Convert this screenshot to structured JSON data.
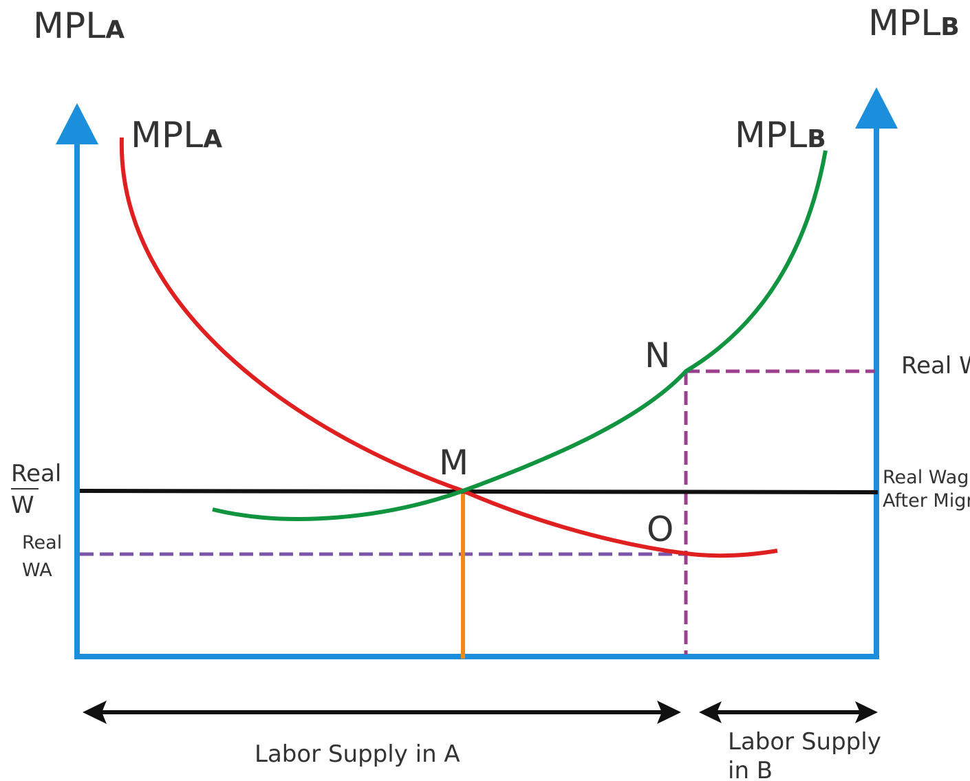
{
  "header": {
    "left_axis": {
      "main": "MPL",
      "sub": "A"
    },
    "right_axis": {
      "main": "MPL",
      "sub": "B"
    }
  },
  "curves": {
    "mpl_a": {
      "main": "MPL",
      "sub": "A",
      "color": "#e02020"
    },
    "mpl_b": {
      "main": "MPL",
      "sub": "B",
      "color": "#119440"
    }
  },
  "points": {
    "m": "M",
    "n": "N",
    "o": "O"
  },
  "left_labels": {
    "real_w_top": "Real",
    "real_w_bottom": "W",
    "real_wa_top": "Real",
    "real_wa_bottom": "WA"
  },
  "right_labels": {
    "real_wb": "Real W",
    "after_line1": "Real Wage",
    "after_line2": "After Migration"
  },
  "bottom_labels": {
    "supply_a": "Labor Supply in A",
    "supply_b_line1": "Labor Supply",
    "supply_b_line2": "in B"
  },
  "colors": {
    "axis": "#1b8fdc",
    "wage_line": "#111111",
    "wa_dashed": "#7a55a8",
    "n_dashed": "#9b3f8f",
    "m_drop": "#ee8a1a",
    "arrows": "#111111"
  }
}
